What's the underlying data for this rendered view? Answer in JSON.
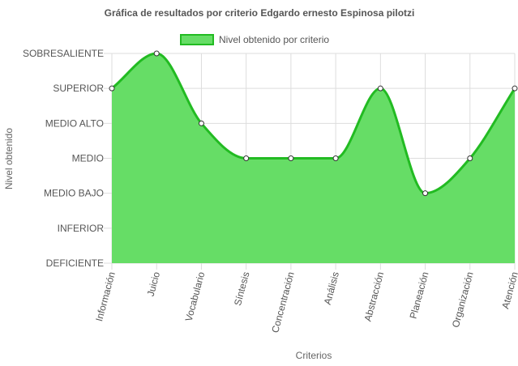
{
  "chart_data": {
    "type": "area",
    "title": "Gráfica de resultados por criterio Edgardo ernesto Espinosa pilotzi",
    "xlabel": "Criterios",
    "ylabel": "Nivel obtenido",
    "legend": {
      "position": "top",
      "entries": [
        "Nivel obtenido por criterio"
      ]
    },
    "levels": [
      "DEFICIENTE",
      "INFERIOR",
      "MEDIO BAJO",
      "MEDIO",
      "MEDIO ALTO",
      "SUPERIOR",
      "SOBRESALIENTE"
    ],
    "categories": [
      "Información",
      "Juicio",
      "Vocabulario",
      "Síntesis",
      "Concentración",
      "Análisis",
      "Abstracción",
      "Planeación",
      "Organización",
      "Atención"
    ],
    "series": [
      {
        "name": "Nivel obtenido por criterio",
        "values": [
          5,
          6,
          4,
          3,
          3,
          3,
          5,
          2,
          3,
          5
        ]
      }
    ],
    "ylim": [
      0,
      6
    ],
    "grid": true,
    "colors": {
      "fill": "#66dd66",
      "line": "#22bb22",
      "grid": "#dddddd",
      "point_fill": "#ffffff",
      "point_stroke": "#333333"
    }
  }
}
